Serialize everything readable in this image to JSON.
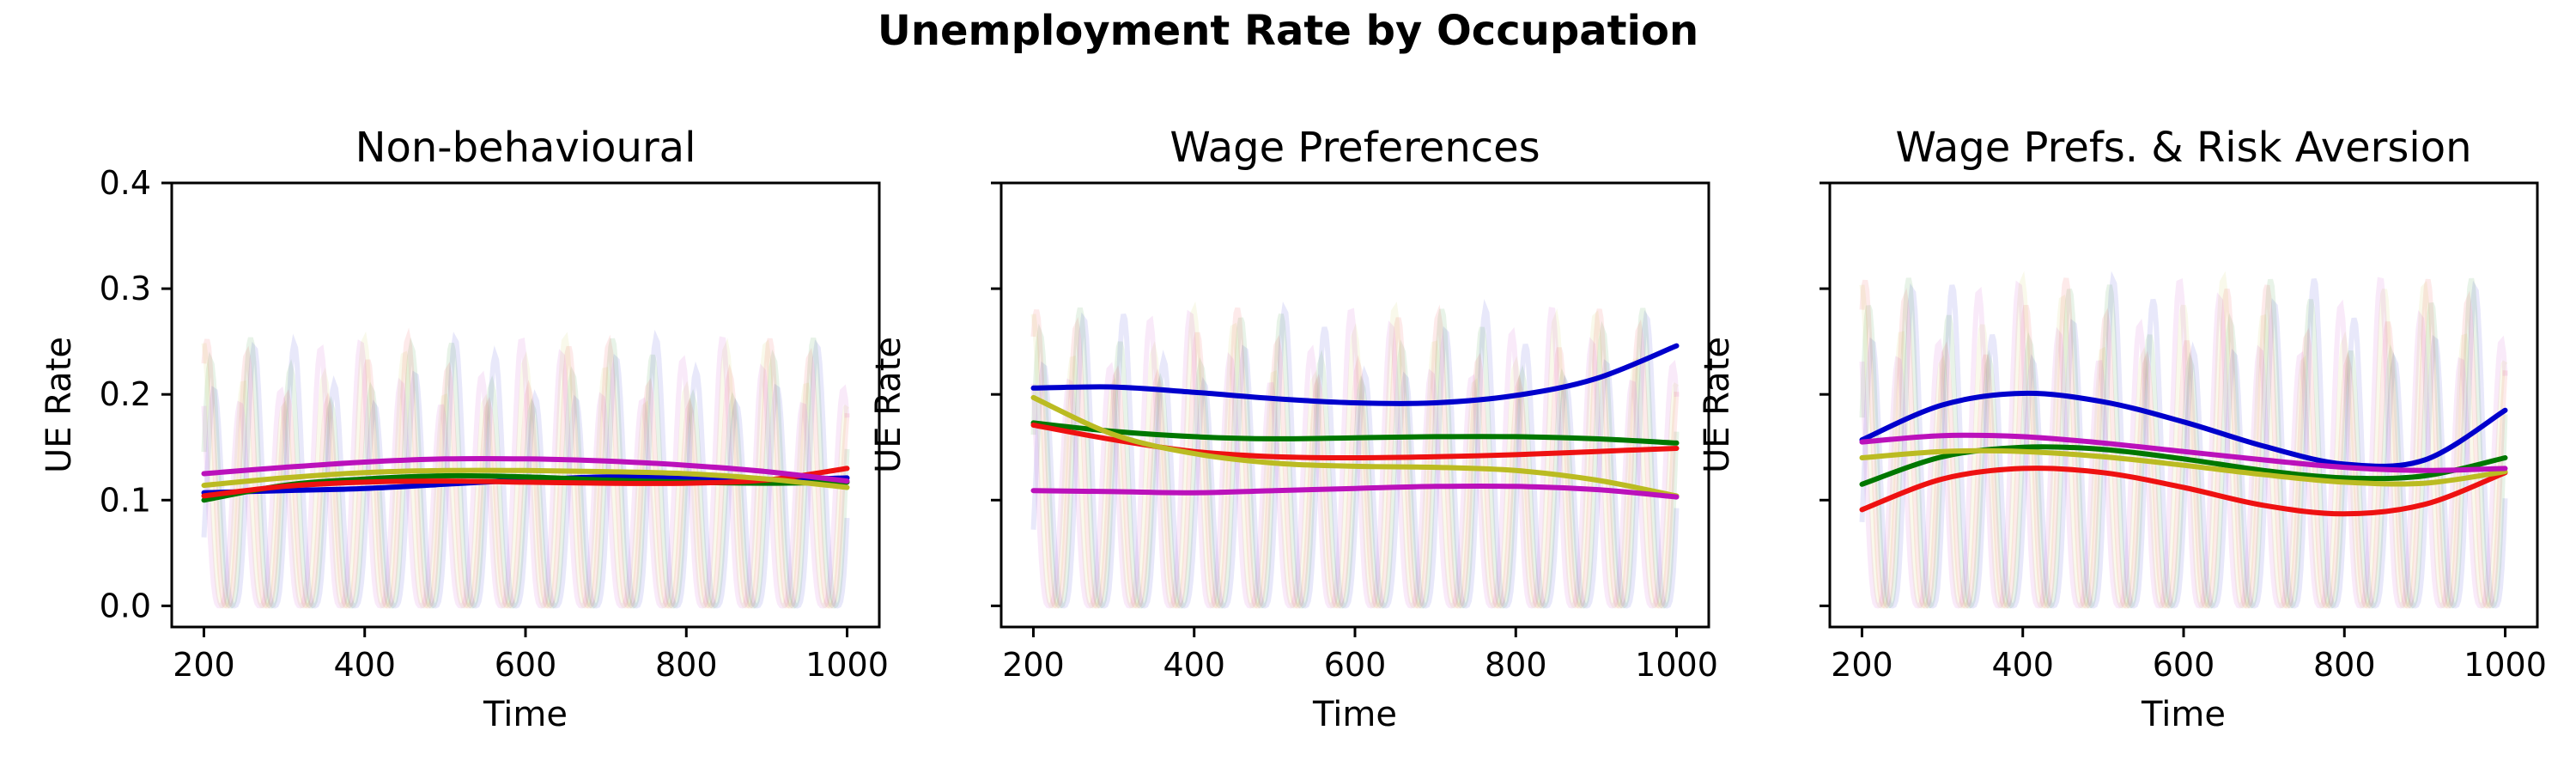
{
  "chart_data": {
    "title": "Unemployment Rate by Occupation",
    "panels": [
      {
        "type": "line",
        "title": "Non-behavioural",
        "xlabel": "Time",
        "ylabel": "UE Rate",
        "xlim": [
          160,
          1040
        ],
        "ylim": [
          -0.02,
          0.4
        ],
        "xticks": [
          200,
          400,
          600,
          800,
          1000
        ],
        "yticks": [
          0.0,
          0.1,
          0.2,
          0.3,
          0.4
        ],
        "show_ytick_labels": true,
        "background_oscillation": {
          "period": 50,
          "min": 0.0,
          "max": 0.27
        },
        "x": [
          200,
          300,
          400,
          500,
          600,
          700,
          800,
          900,
          1000
        ],
        "series": [
          {
            "color": "#0000cc",
            "values": [
              0.107,
              0.109,
              0.111,
              0.115,
              0.119,
              0.122,
              0.121,
              0.119,
              0.121
            ]
          },
          {
            "color": "#007700",
            "values": [
              0.1,
              0.114,
              0.12,
              0.123,
              0.122,
              0.119,
              0.117,
              0.116,
              0.117
            ]
          },
          {
            "color": "#ee1111",
            "values": [
              0.104,
              0.113,
              0.117,
              0.118,
              0.117,
              0.116,
              0.116,
              0.119,
              0.13
            ]
          },
          {
            "color": "#bbbb22",
            "values": [
              0.114,
              0.121,
              0.126,
              0.128,
              0.128,
              0.127,
              0.125,
              0.12,
              0.112
            ]
          },
          {
            "color": "#bb11bb",
            "values": [
              0.125,
              0.131,
              0.136,
              0.139,
              0.139,
              0.137,
              0.133,
              0.127,
              0.118
            ]
          }
        ]
      },
      {
        "type": "line",
        "title": "Wage Preferences",
        "xlabel": "Time",
        "ylabel": "UE Rate",
        "xlim": [
          160,
          1040
        ],
        "ylim": [
          -0.02,
          0.4
        ],
        "xticks": [
          200,
          400,
          600,
          800,
          1000
        ],
        "yticks": [
          0.0,
          0.1,
          0.2,
          0.3,
          0.4
        ],
        "show_ytick_labels": false,
        "background_oscillation": {
          "period": 50,
          "min": 0.0,
          "max": 0.3
        },
        "x": [
          200,
          300,
          400,
          500,
          600,
          700,
          800,
          900,
          1000
        ],
        "series": [
          {
            "color": "#0000cc",
            "values": [
              0.206,
              0.207,
              0.202,
              0.196,
              0.192,
              0.192,
              0.199,
              0.215,
              0.246
            ]
          },
          {
            "color": "#007700",
            "values": [
              0.173,
              0.165,
              0.16,
              0.158,
              0.159,
              0.16,
              0.16,
              0.158,
              0.154
            ]
          },
          {
            "color": "#ee1111",
            "values": [
              0.171,
              0.157,
              0.146,
              0.141,
              0.14,
              0.141,
              0.143,
              0.146,
              0.149
            ]
          },
          {
            "color": "#bbbb22",
            "values": [
              0.197,
              0.162,
              0.144,
              0.135,
              0.132,
              0.131,
              0.128,
              0.119,
              0.104
            ]
          },
          {
            "color": "#bb11bb",
            "values": [
              0.109,
              0.108,
              0.107,
              0.109,
              0.111,
              0.113,
              0.113,
              0.11,
              0.103
            ]
          }
        ]
      },
      {
        "type": "line",
        "title": "Wage Prefs. & Risk Aversion",
        "xlabel": "Time",
        "ylabel": "UE Rate",
        "xlim": [
          160,
          1040
        ],
        "ylim": [
          -0.02,
          0.4
        ],
        "xticks": [
          200,
          400,
          600,
          800,
          1000
        ],
        "yticks": [
          0.0,
          0.1,
          0.2,
          0.3,
          0.4
        ],
        "show_ytick_labels": false,
        "background_oscillation": {
          "period": 50,
          "min": 0.0,
          "max": 0.33
        },
        "x": [
          200,
          300,
          400,
          500,
          600,
          700,
          800,
          900,
          1000
        ],
        "series": [
          {
            "color": "#0000cc",
            "values": [
              0.157,
              0.19,
              0.201,
              0.193,
              0.174,
              0.151,
              0.134,
              0.138,
              0.185
            ]
          },
          {
            "color": "#007700",
            "values": [
              0.115,
              0.141,
              0.15,
              0.148,
              0.139,
              0.128,
              0.121,
              0.123,
              0.14
            ]
          },
          {
            "color": "#ee1111",
            "values": [
              0.091,
              0.12,
              0.13,
              0.126,
              0.112,
              0.095,
              0.087,
              0.096,
              0.126
            ]
          },
          {
            "color": "#bbbb22",
            "values": [
              0.14,
              0.146,
              0.146,
              0.141,
              0.133,
              0.124,
              0.117,
              0.116,
              0.127
            ]
          },
          {
            "color": "#bb11bb",
            "values": [
              0.155,
              0.161,
              0.16,
              0.154,
              0.146,
              0.138,
              0.131,
              0.128,
              0.13
            ]
          }
        ]
      }
    ]
  }
}
